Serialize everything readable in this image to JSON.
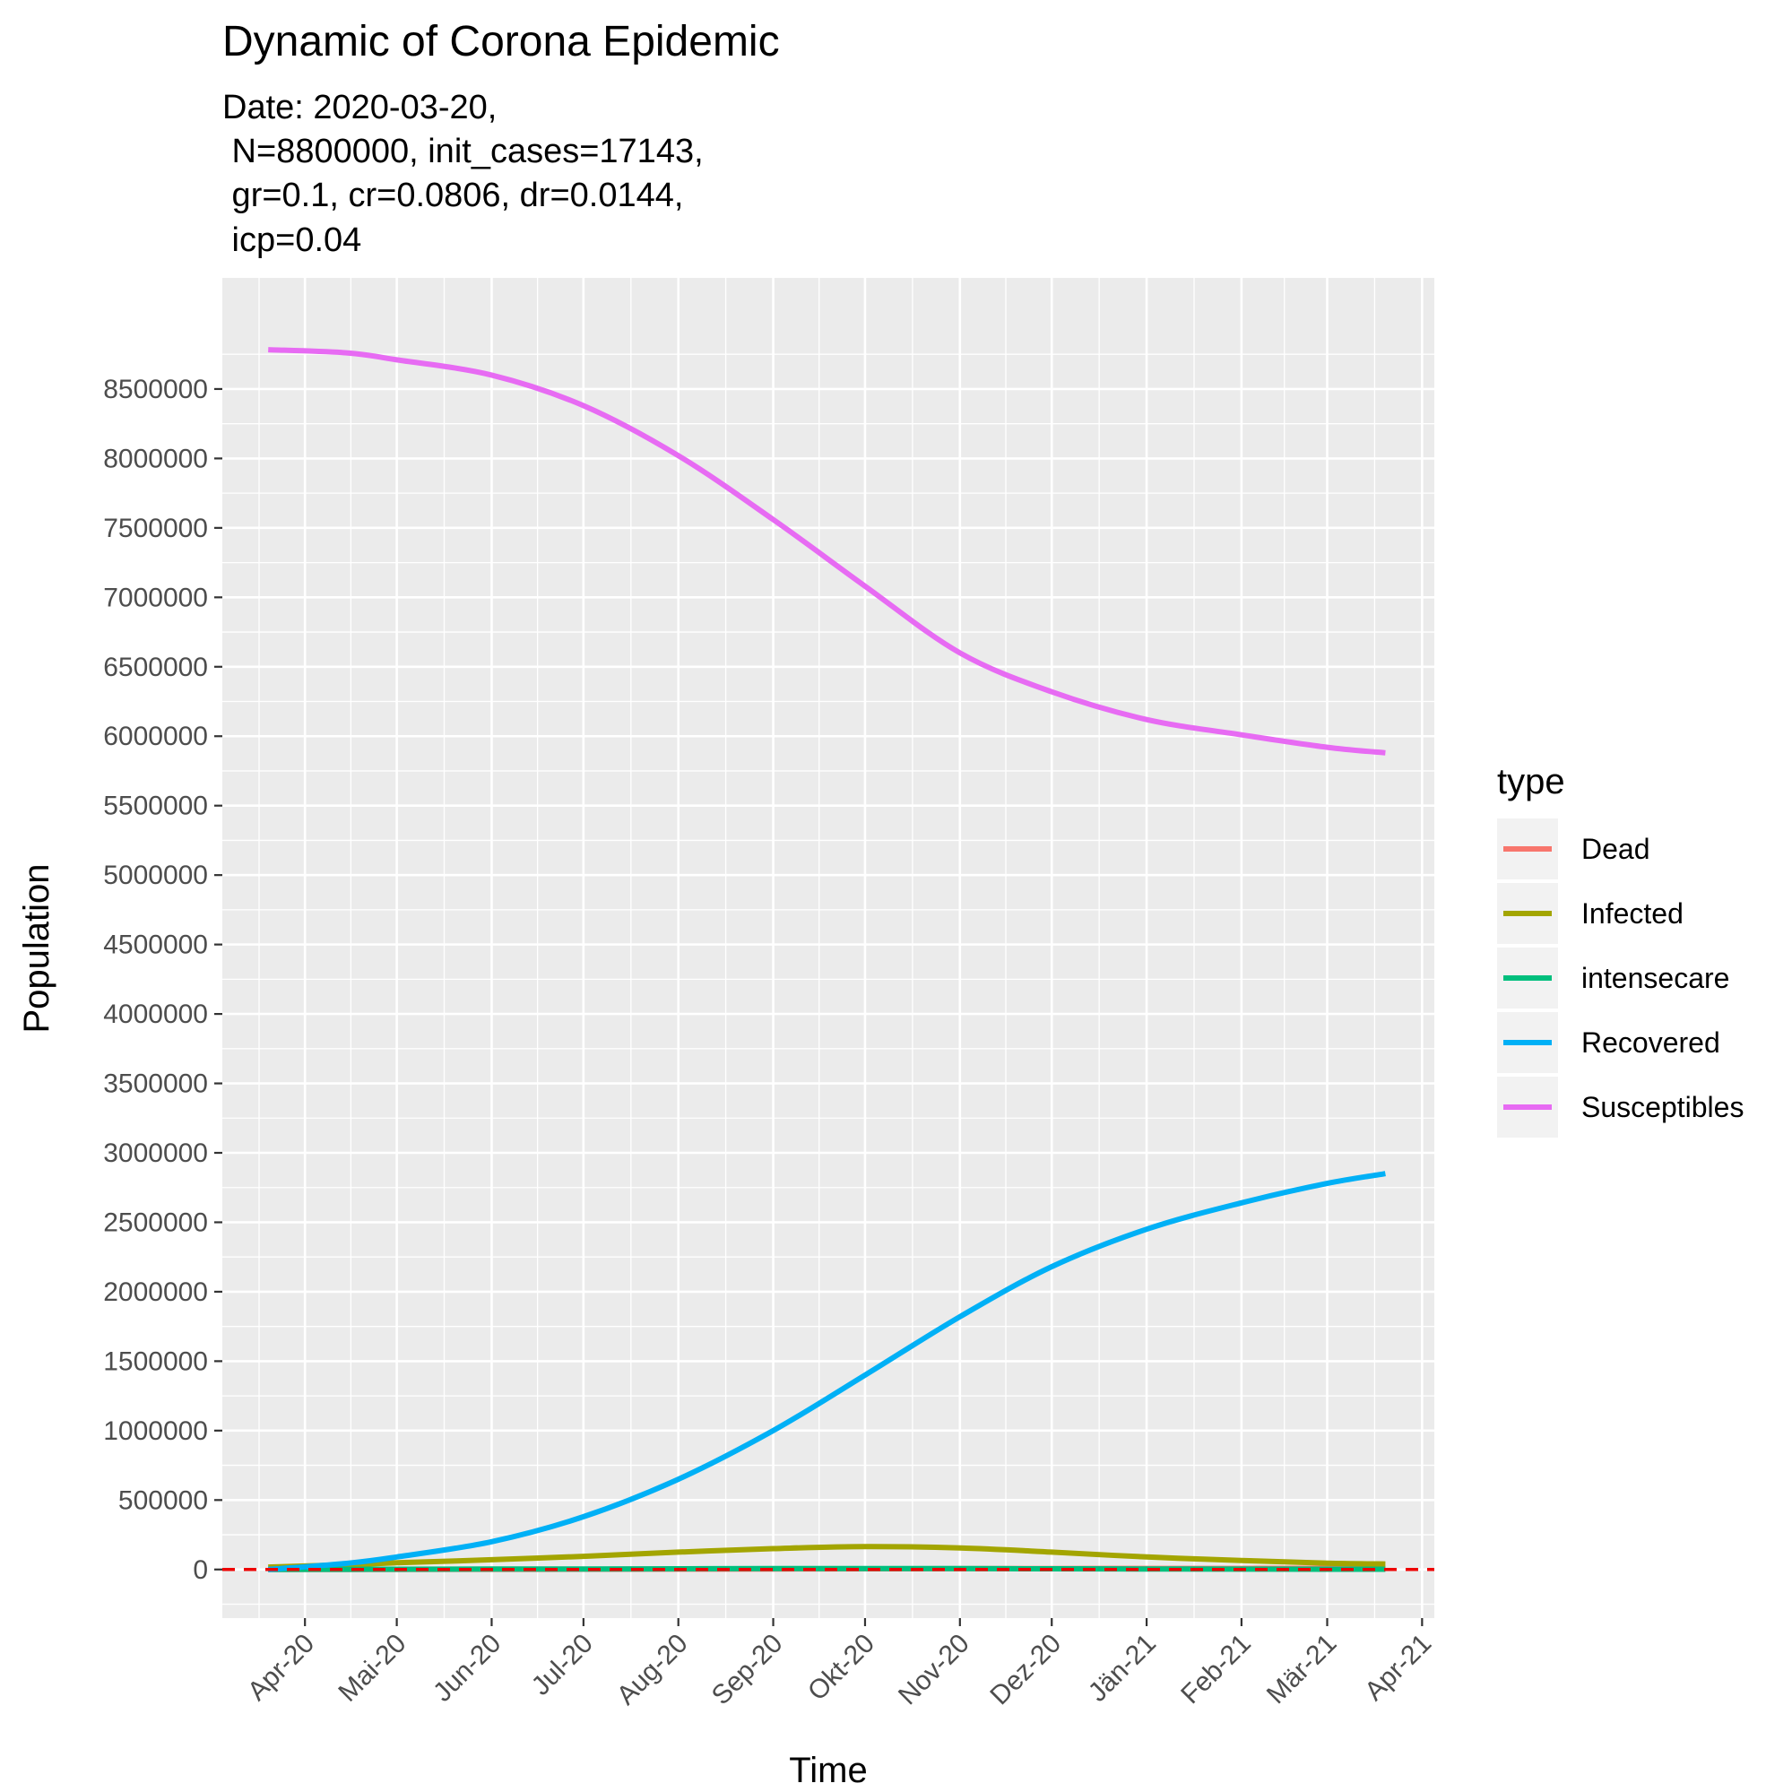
{
  "chart_data": {
    "type": "line",
    "title": "Dynamic of Corona Epidemic",
    "subtitle_lines": [
      "Date: 2020-03-20,",
      " N=8800000, init_cases=17143,",
      " gr=0.1, cr=0.0806, dr=0.0144,",
      " icp=0.04"
    ],
    "xlabel": "Time",
    "ylabel": "Population",
    "xlim": [
      "2020-03-05",
      "2021-04-05"
    ],
    "ylim": [
      -350000,
      9300000
    ],
    "grid": true,
    "legend_position": "right",
    "legend_title": "type",
    "x_tick_labels": [
      {
        "date": "2020-04-01",
        "label": "Apr-20"
      },
      {
        "date": "2020-05-01",
        "label": "Mai-20"
      },
      {
        "date": "2020-06-01",
        "label": "Jun-20"
      },
      {
        "date": "2020-07-01",
        "label": "Jul-20"
      },
      {
        "date": "2020-08-01",
        "label": "Aug-20"
      },
      {
        "date": "2020-09-01",
        "label": "Sep-20"
      },
      {
        "date": "2020-10-01",
        "label": "Okt-20"
      },
      {
        "date": "2020-11-01",
        "label": "Nov-20"
      },
      {
        "date": "2020-12-01",
        "label": "Dez-20"
      },
      {
        "date": "2021-01-01",
        "label": "Jän-21"
      },
      {
        "date": "2021-02-01",
        "label": "Feb-21"
      },
      {
        "date": "2021-03-01",
        "label": "Mär-21"
      },
      {
        "date": "2021-04-01",
        "label": "Apr-21"
      }
    ],
    "y_ticks": [
      0,
      500000,
      1000000,
      1500000,
      2000000,
      2500000,
      3000000,
      3500000,
      4000000,
      4500000,
      5000000,
      5500000,
      6000000,
      6500000,
      7000000,
      7500000,
      8000000,
      8500000
    ],
    "reference_line": {
      "y": 0,
      "color": "#ee0000",
      "style": "dashed"
    },
    "x": [
      "2020-03-20",
      "2020-04-15",
      "2020-05-01",
      "2020-06-01",
      "2020-07-01",
      "2020-08-01",
      "2020-09-01",
      "2020-10-01",
      "2020-11-01",
      "2020-12-01",
      "2021-01-01",
      "2021-02-01",
      "2021-03-01",
      "2021-03-20"
    ],
    "series": [
      {
        "name": "Dead",
        "color": "#F8766D",
        "values": [
          0,
          200,
          400,
          900,
          1600,
          2500,
          3600,
          4700,
          5800,
          6700,
          7400,
          7900,
          8300,
          8500
        ]
      },
      {
        "name": "Infected",
        "color": "#A3A500",
        "values": [
          17143,
          35000,
          48000,
          70000,
          95000,
          125000,
          150000,
          165000,
          155000,
          125000,
          90000,
          65000,
          45000,
          40000
        ]
      },
      {
        "name": "intensecare",
        "color": "#00BF7D",
        "values": [
          700,
          1400,
          1900,
          2800,
          3800,
          5000,
          6000,
          6600,
          6200,
          5000,
          3600,
          2600,
          1800,
          1600
        ]
      },
      {
        "name": "Recovered",
        "color": "#00B0F6",
        "values": [
          0,
          45000,
          90000,
          200000,
          380000,
          650000,
          1000000,
          1400000,
          1820000,
          2180000,
          2450000,
          2640000,
          2780000,
          2850000
        ]
      },
      {
        "name": "Susceptibles",
        "color": "#E76BF3",
        "values": [
          8782857,
          8760000,
          8710000,
          8600000,
          8380000,
          8020000,
          7560000,
          7080000,
          6600000,
          6320000,
          6120000,
          6010000,
          5920000,
          5880000
        ]
      }
    ]
  }
}
